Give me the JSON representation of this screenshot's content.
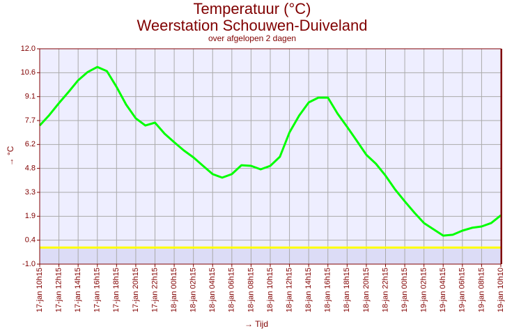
{
  "chart_data": {
    "type": "line",
    "title": "Temperatuur (°C)",
    "subtitle": "Weerstation Schouwen-Duiveland",
    "note": "over afgelopen 2 dagen",
    "y_label": "→ °C",
    "x_label": "→ Tijd",
    "categories": [
      "17-jan 10h15",
      null,
      "17-jan 12h15",
      null,
      "17-jan 14h15",
      null,
      "17-jan 16h15",
      null,
      "17-jan 18h15",
      null,
      "17-jan 20h15",
      null,
      "17-jan 22h15",
      null,
      "18-jan 00h15",
      null,
      "18-jan 02h15",
      null,
      "18-jan 04h15",
      null,
      "18-jan 06h15",
      null,
      "18-jan 08h15",
      null,
      "18-jan 10h15",
      null,
      "18-jan 12h15",
      null,
      "18-jan 14h15",
      null,
      "18-jan 16h15",
      null,
      "18-jan 18h15",
      null,
      "18-jan 20h15",
      null,
      "18-jan 22h15",
      null,
      "19-jan 00h15",
      null,
      "19-jan 02h15",
      null,
      "19-jan 04h15",
      null,
      "19-jan 06h15",
      null,
      "19-jan 08h15",
      null,
      "19-jan 10h10"
    ],
    "series": [
      {
        "name": "Temperatuur",
        "color": "#00ff00",
        "values": [
          7.37,
          8.0,
          8.72,
          9.39,
          10.1,
          10.6,
          10.9,
          10.65,
          9.7,
          8.63,
          7.8,
          7.37,
          7.54,
          6.87,
          6.36,
          5.86,
          5.44,
          4.93,
          4.43,
          4.22,
          4.43,
          4.97,
          4.93,
          4.72,
          4.93,
          5.48,
          6.95,
          7.96,
          8.76,
          9.05,
          9.05,
          8.09,
          7.29,
          6.45,
          5.6,
          5.06,
          4.34,
          3.5,
          2.79,
          2.11,
          1.48,
          1.1,
          0.72,
          0.77,
          1.02,
          1.19,
          1.27,
          1.48,
          1.94
        ]
      }
    ],
    "ylim": [
      -1,
      12
    ],
    "yticks": [
      {
        "value": -1,
        "label": "-1.0"
      },
      {
        "value": 0.444,
        "label": "0.4"
      },
      {
        "value": 1.889,
        "label": "1.9"
      },
      {
        "value": 3.333,
        "label": "3.3"
      },
      {
        "value": 4.778,
        "label": "4.8"
      },
      {
        "value": 6.222,
        "label": "6.2"
      },
      {
        "value": 7.667,
        "label": "7.7"
      },
      {
        "value": 9.111,
        "label": "9.1"
      },
      {
        "value": 10.556,
        "label": "10.6"
      },
      {
        "value": 12,
        "label": "12.0"
      }
    ],
    "reference_line": {
      "value": 0,
      "color": "#ffff00"
    },
    "grid": true
  }
}
